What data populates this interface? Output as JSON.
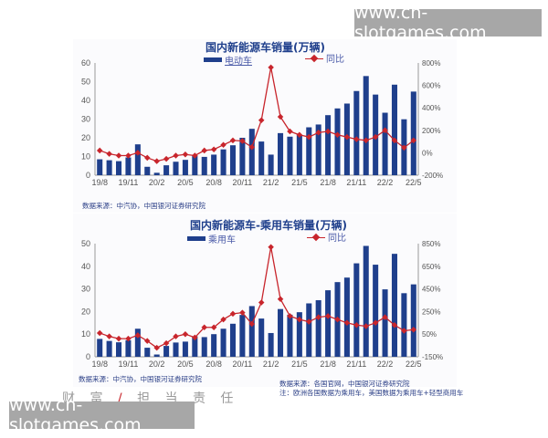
{
  "watermarks": {
    "top": "www.cn-slotgames.com",
    "bottom": "www.cn-slotgames.com"
  },
  "slogan": {
    "left": "财 富",
    "slash": "/",
    "right": "担 当 责 任"
  },
  "chart1": {
    "title": "国内新能源车销量(万辆)",
    "legend_bar": "电动车",
    "legend_line": "同比",
    "source": "数据来源：中汽协，中国银河证券研究院"
  },
  "chart2": {
    "title": "国内新能源车-乘用车销量(万辆)",
    "legend_bar": "乘用车",
    "legend_line": "同比",
    "source_left": "数据来源：中汽协，中国银河证券研究院",
    "source_right_1": "数据来源：各国官网，中国银河证券研究院",
    "source_right_2": "注：欧洲各国数据为乘用车，美国数据为乘用车+轻型商用车"
  },
  "colors": {
    "bar": "#1f3f8c",
    "line": "#c8252c",
    "title": "#1f3f8c",
    "axis_text": "#555555"
  },
  "chart_data": [
    {
      "type": "bar",
      "title": "国内新能源车销量(万辆)",
      "xlabel": "",
      "ylabel": "万辆",
      "ylim": [
        0,
        60
      ],
      "y2lim": [
        -200,
        800
      ],
      "yticks": [
        0,
        10,
        20,
        30,
        40,
        50,
        60
      ],
      "y2ticks": [
        "-200%",
        "0%",
        "200%",
        "400%",
        "600%",
        "800%"
      ],
      "xtick_labels": [
        "19/8",
        "19/11",
        "20/2",
        "20/5",
        "20/8",
        "20/11",
        "21/2",
        "21/5",
        "21/8",
        "21/11",
        "22/2",
        "22/5"
      ],
      "legend_position": "top",
      "grid": false,
      "categories": [
        "19/8",
        "19/9",
        "19/10",
        "19/11",
        "19/12",
        "20/1",
        "20/2",
        "20/3",
        "20/4",
        "20/5",
        "20/6",
        "20/7",
        "20/8",
        "20/9",
        "20/10",
        "20/11",
        "20/12",
        "21/1",
        "21/2",
        "21/3",
        "21/4",
        "21/5",
        "21/6",
        "21/7",
        "21/8",
        "21/9",
        "21/10",
        "21/11",
        "21/12",
        "22/1",
        "22/2",
        "22/3",
        "22/4",
        "22/5"
      ],
      "series": [
        {
          "name": "电动车",
          "type": "bar",
          "axis": "left",
          "values": [
            8.5,
            8.0,
            7.5,
            9.5,
            16.5,
            4.5,
            1.3,
            5.3,
            7.2,
            8.2,
            10.5,
            9.8,
            11.0,
            13.8,
            16.0,
            20.0,
            24.8,
            18.0,
            11.0,
            22.5,
            20.6,
            21.7,
            25.6,
            27.1,
            32.1,
            35.7,
            38.3,
            45.0,
            53.0,
            43.1,
            33.4,
            48.4,
            29.9,
            44.7
          ]
        },
        {
          "name": "同比",
          "type": "line",
          "axis": "right",
          "unit": "%",
          "values": [
            20,
            -10,
            -25,
            -25,
            0,
            -45,
            -75,
            -55,
            -25,
            -15,
            -25,
            20,
            30,
            70,
            110,
            105,
            50,
            290,
            760,
            320,
            190,
            160,
            140,
            180,
            190,
            160,
            140,
            120,
            110,
            140,
            200,
            110,
            45,
            110
          ]
        }
      ]
    },
    {
      "type": "bar",
      "title": "国内新能源车-乘用车销量(万辆)",
      "xlabel": "",
      "ylabel": "万辆",
      "ylim": [
        0,
        50
      ],
      "y2lim": [
        -150,
        850
      ],
      "yticks": [
        0,
        10,
        20,
        30,
        40,
        50
      ],
      "y2ticks": [
        "-150%",
        "50%",
        "250%",
        "450%",
        "650%",
        "850%"
      ],
      "xtick_labels": [
        "19/8",
        "19/11",
        "20/2",
        "20/5",
        "20/8",
        "20/11",
        "21/2",
        "21/5",
        "21/8",
        "21/11",
        "22/2",
        "22/5"
      ],
      "legend_position": "top",
      "grid": false,
      "categories": [
        "19/8",
        "19/9",
        "19/10",
        "19/11",
        "19/12",
        "20/1",
        "20/2",
        "20/3",
        "20/4",
        "20/5",
        "20/6",
        "20/7",
        "20/8",
        "20/9",
        "20/10",
        "20/11",
        "20/12",
        "21/1",
        "21/2",
        "21/3",
        "21/4",
        "21/5",
        "21/6",
        "21/7",
        "21/8",
        "21/9",
        "21/10",
        "21/11",
        "21/12",
        "22/1",
        "22/2",
        "22/3",
        "22/4",
        "22/5"
      ],
      "series": [
        {
          "name": "乘用车",
          "type": "bar",
          "axis": "left",
          "values": [
            7.9,
            7.0,
            6.4,
            7.3,
            12.4,
            4.0,
            1.0,
            4.8,
            6.3,
            6.7,
            9.1,
            8.7,
            10.0,
            12.4,
            14.6,
            18.5,
            22.4,
            16.9,
            10.5,
            21.1,
            18.6,
            19.7,
            23.6,
            25.0,
            29.4,
            33.0,
            35.0,
            41.3,
            49.0,
            40.7,
            29.8,
            45.5,
            28.1,
            32.0
          ]
        },
        {
          "name": "同比",
          "type": "line",
          "axis": "right",
          "unit": "%",
          "values": [
            60,
            30,
            10,
            10,
            40,
            -10,
            -70,
            -30,
            30,
            50,
            20,
            110,
            110,
            180,
            230,
            240,
            140,
            330,
            820,
            360,
            210,
            180,
            160,
            200,
            210,
            180,
            150,
            130,
            120,
            150,
            200,
            130,
            80,
            90
          ]
        }
      ]
    }
  ]
}
